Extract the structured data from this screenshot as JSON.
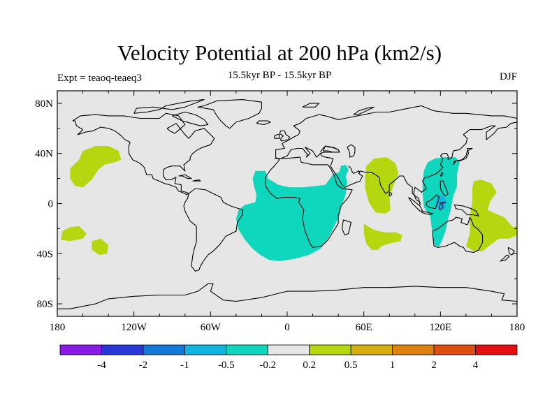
{
  "title": "Velocity Potential at 200 hPa (km2/s)",
  "left_label": "Expt = teaoq-teaeq3",
  "center_label": "15.5kyr BP - 15.5kyr BP",
  "right_label": "DJF",
  "chart_data": {
    "type": "heatmap",
    "projection": "cylindrical-equidistant",
    "xlim": [
      -180,
      180
    ],
    "ylim": [
      -90,
      90
    ],
    "x_ticks": [
      {
        "value": -180,
        "label": "180"
      },
      {
        "value": -120,
        "label": "120W"
      },
      {
        "value": -60,
        "label": "60W"
      },
      {
        "value": 0,
        "label": "0"
      },
      {
        "value": 60,
        "label": "60E"
      },
      {
        "value": 120,
        "label": "120E"
      },
      {
        "value": 180,
        "label": "180"
      }
    ],
    "y_ticks": [
      {
        "value": 80,
        "label": "80N"
      },
      {
        "value": 40,
        "label": "40N"
      },
      {
        "value": 0,
        "label": "0"
      },
      {
        "value": -40,
        "label": "40S"
      },
      {
        "value": -80,
        "label": "80S"
      }
    ],
    "background_color": "#e6e6e6",
    "colorbar": {
      "colors": [
        "#8c1ae6",
        "#2838d6",
        "#1478d8",
        "#12b4e0",
        "#0fd7bd",
        "#e6e6e6",
        "#b4d70f",
        "#d6ae10",
        "#dd8210",
        "#dc4e0f",
        "#e60f0f"
      ],
      "labels": [
        "-4",
        "-2",
        "-1",
        "-0.5",
        "-0.2",
        "0.2",
        "0.5",
        "1",
        "2",
        "4"
      ]
    },
    "regions": [
      {
        "name": "north-pacific-positive",
        "value": 0.3,
        "color": "#b4d70f",
        "polygon": [
          [
            -163,
            35
          ],
          [
            -160,
            42
          ],
          [
            -150,
            46
          ],
          [
            -140,
            46
          ],
          [
            -132,
            42
          ],
          [
            -130,
            35
          ],
          [
            -135,
            33
          ],
          [
            -143,
            31
          ],
          [
            -148,
            27
          ],
          [
            -153,
            19
          ],
          [
            -160,
            13
          ],
          [
            -166,
            14
          ],
          [
            -170,
            20
          ],
          [
            -170,
            28
          ]
        ]
      },
      {
        "name": "south-pacific-positive-a",
        "value": 0.3,
        "color": "#b4d70f",
        "polygon": [
          [
            -176,
            -22
          ],
          [
            -170,
            -19
          ],
          [
            -163,
            -18
          ],
          [
            -157,
            -24
          ],
          [
            -160,
            -28
          ],
          [
            -170,
            -30
          ],
          [
            -177,
            -29
          ]
        ]
      },
      {
        "name": "south-pacific-positive-b",
        "value": 0.3,
        "color": "#b4d70f",
        "polygon": [
          [
            -153,
            -30
          ],
          [
            -146,
            -28
          ],
          [
            -140,
            -33
          ],
          [
            -141,
            -40
          ],
          [
            -147,
            -41
          ],
          [
            -153,
            -37
          ]
        ]
      },
      {
        "name": "atlantic-africa-negative",
        "value": -0.3,
        "color": "#0fd7bd",
        "polygon": [
          [
            -25,
            26
          ],
          [
            -17,
            26
          ],
          [
            -15,
            20
          ],
          [
            -7,
            15
          ],
          [
            2,
            13
          ],
          [
            13,
            13
          ],
          [
            22,
            14
          ],
          [
            30,
            15
          ],
          [
            35,
            22
          ],
          [
            37,
            24
          ],
          [
            44,
            26
          ],
          [
            47,
            18
          ],
          [
            46,
            8
          ],
          [
            43,
            -1
          ],
          [
            41,
            -9
          ],
          [
            37,
            -18
          ],
          [
            32,
            -28
          ],
          [
            26,
            -36
          ],
          [
            17,
            -41
          ],
          [
            6,
            -44
          ],
          [
            -6,
            -46
          ],
          [
            -14,
            -45
          ],
          [
            -21,
            -41
          ],
          [
            -27,
            -36
          ],
          [
            -33,
            -29
          ],
          [
            -38,
            -21
          ],
          [
            -40,
            -12
          ],
          [
            -38,
            -5
          ],
          [
            -33,
            -1
          ],
          [
            -25,
            1
          ],
          [
            -24,
            7
          ],
          [
            -26,
            14
          ],
          [
            -27,
            20
          ]
        ]
      },
      {
        "name": "arabia-negative",
        "value": -0.3,
        "color": "#0fd7bd",
        "polygon": [
          [
            40,
            22
          ],
          [
            42,
            30
          ],
          [
            46,
            31
          ],
          [
            48,
            27
          ],
          [
            45,
            20
          ],
          [
            42,
            17
          ]
        ]
      },
      {
        "name": "india-positive",
        "value": 0.3,
        "color": "#b4d70f",
        "polygon": [
          [
            62,
            30
          ],
          [
            68,
            36
          ],
          [
            78,
            37
          ],
          [
            85,
            32
          ],
          [
            87,
            24
          ],
          [
            84,
            16
          ],
          [
            80,
            6
          ],
          [
            81,
            -5
          ],
          [
            77,
            -8
          ],
          [
            69,
            -7
          ],
          [
            64,
            1
          ],
          [
            61,
            12
          ],
          [
            61,
            22
          ]
        ]
      },
      {
        "name": "south-indian-ocean-positive",
        "value": 0.3,
        "color": "#b4d70f",
        "polygon": [
          [
            60,
            -16
          ],
          [
            68,
            -21
          ],
          [
            76,
            -23
          ],
          [
            85,
            -23
          ],
          [
            90,
            -25
          ],
          [
            89,
            -30
          ],
          [
            80,
            -32
          ],
          [
            74,
            -34
          ],
          [
            71,
            -37
          ],
          [
            66,
            -37
          ],
          [
            62,
            -32
          ],
          [
            60,
            -24
          ]
        ]
      },
      {
        "name": "maritime-continent-negative",
        "value": -0.3,
        "color": "#0fd7bd",
        "polygon": [
          [
            110,
            33
          ],
          [
            116,
            36
          ],
          [
            124,
            37
          ],
          [
            132,
            37
          ],
          [
            135,
            33
          ],
          [
            133,
            24
          ],
          [
            133,
            14
          ],
          [
            130,
            6
          ],
          [
            128,
            -5
          ],
          [
            126,
            -12
          ],
          [
            124,
            -22
          ],
          [
            121,
            -30
          ],
          [
            119,
            -34
          ],
          [
            116,
            -34
          ],
          [
            114,
            -27
          ],
          [
            113,
            -18
          ],
          [
            112,
            -10
          ],
          [
            107,
            -3
          ],
          [
            106,
            8
          ],
          [
            106,
            17
          ],
          [
            107,
            26
          ]
        ]
      },
      {
        "name": "maritime-continent-core",
        "value": -0.7,
        "color": "#12b4e0",
        "polygon": [
          [
            117,
            6
          ],
          [
            122,
            7
          ],
          [
            125,
            2
          ],
          [
            124,
            -4
          ],
          [
            120,
            -6
          ],
          [
            116,
            -2
          ]
        ]
      },
      {
        "name": "west-pacific-positive",
        "value": 0.3,
        "color": "#b4d70f",
        "polygon": [
          [
            146,
            18
          ],
          [
            152,
            19
          ],
          [
            160,
            16
          ],
          [
            164,
            9
          ],
          [
            159,
            2
          ],
          [
            157,
            -5
          ],
          [
            163,
            -8
          ],
          [
            170,
            -11
          ],
          [
            177,
            -19
          ],
          [
            180,
            -18
          ],
          [
            180,
            -25
          ],
          [
            174,
            -28
          ],
          [
            166,
            -28
          ],
          [
            159,
            -33
          ],
          [
            153,
            -38
          ],
          [
            146,
            -38
          ],
          [
            140,
            -34
          ],
          [
            143,
            -24
          ],
          [
            143,
            -10
          ],
          [
            145,
            2
          ],
          [
            145,
            12
          ]
        ]
      }
    ]
  }
}
